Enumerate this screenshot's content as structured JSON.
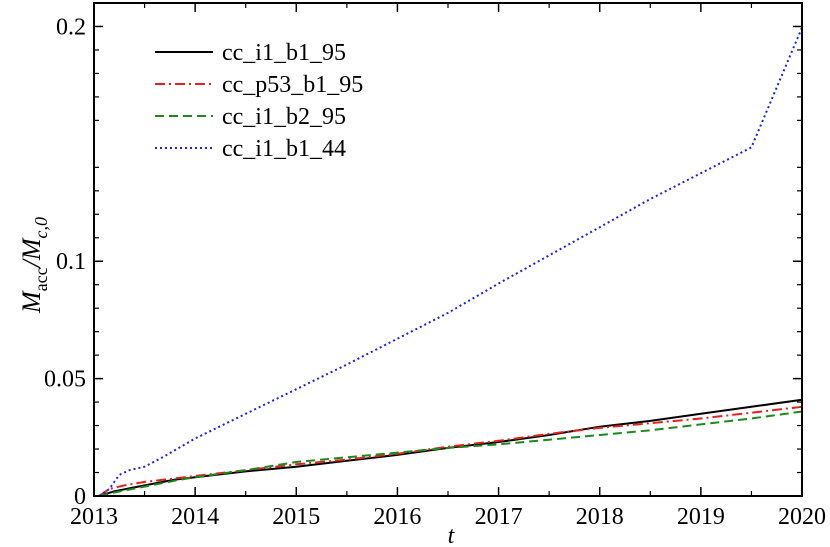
{
  "chart_data": {
    "type": "line",
    "xlabel": "t",
    "ylabel_main": "M",
    "ylabel_sub1": "acc",
    "ylabel_slash": "/",
    "ylabel_main2": "M",
    "ylabel_sub2": "c,0",
    "xlim": [
      2013,
      2020
    ],
    "ylim": [
      0,
      0.21
    ],
    "xticks": [
      2013,
      2014,
      2015,
      2016,
      2017,
      2018,
      2019,
      2020
    ],
    "xtick_labels": [
      "2013",
      "2014",
      "2015",
      "2016",
      "2017",
      "2018",
      "2019",
      "2020"
    ],
    "yticks": [
      0,
      0.05,
      0.1,
      0.2
    ],
    "ytick_labels": [
      "0",
      "0.05",
      "0.1",
      "0.2"
    ],
    "grid": false,
    "legend_position": "top-left",
    "series": [
      {
        "name": "cc_i1_b1_95",
        "color": "#000000",
        "dash": "solid",
        "x": [
          2013.05,
          2013.2,
          2013.5,
          2013.8,
          2014,
          2014.5,
          2015,
          2015.5,
          2016,
          2016.5,
          2017,
          2017.5,
          2018,
          2018.5,
          2019,
          2019.5,
          2020
        ],
        "y": [
          0,
          0.002,
          0.0045,
          0.007,
          0.008,
          0.0105,
          0.0125,
          0.015,
          0.0175,
          0.0205,
          0.023,
          0.026,
          0.0295,
          0.032,
          0.035,
          0.038,
          0.041
        ]
      },
      {
        "name": "cc_p53_b1_95",
        "color": "#e8201c",
        "dash": "dashdot",
        "x": [
          2013.05,
          2013.15,
          2013.3,
          2013.5,
          2013.8,
          2014,
          2014.5,
          2015,
          2015.5,
          2016,
          2016.5,
          2017,
          2017.5,
          2018,
          2018.5,
          2019,
          2019.5,
          2020
        ],
        "y": [
          0,
          0.003,
          0.0045,
          0.006,
          0.0075,
          0.0085,
          0.011,
          0.0135,
          0.0155,
          0.018,
          0.021,
          0.0235,
          0.0265,
          0.029,
          0.031,
          0.033,
          0.0355,
          0.038
        ]
      },
      {
        "name": "cc_i1_b2_95",
        "color": "#1a8a1a",
        "dash": "dashed",
        "x": [
          2013.05,
          2013.2,
          2013.5,
          2013.8,
          2014,
          2014.5,
          2015,
          2015.5,
          2016,
          2016.5,
          2017,
          2017.5,
          2018,
          2018.5,
          2019,
          2019.5,
          2020
        ],
        "y": [
          0,
          0.0015,
          0.004,
          0.0065,
          0.008,
          0.011,
          0.0145,
          0.0165,
          0.0185,
          0.0205,
          0.022,
          0.024,
          0.026,
          0.028,
          0.0305,
          0.033,
          0.036
        ]
      },
      {
        "name": "cc_i1_b1_44",
        "color": "#1c1cf0",
        "dash": "dotted",
        "x": [
          2013.05,
          2013.15,
          2013.25,
          2013.35,
          2013.5,
          2013.7,
          2014,
          2014.5,
          2015,
          2015.5,
          2016,
          2016.5,
          2017,
          2017.5,
          2018,
          2018.5,
          2019,
          2019.5,
          2020
        ],
        "y": [
          0,
          0.003,
          0.009,
          0.011,
          0.0125,
          0.017,
          0.0245,
          0.035,
          0.0455,
          0.056,
          0.067,
          0.078,
          0.0905,
          0.1025,
          0.1145,
          0.1265,
          0.1375,
          0.1485,
          0.1995
        ]
      }
    ]
  }
}
